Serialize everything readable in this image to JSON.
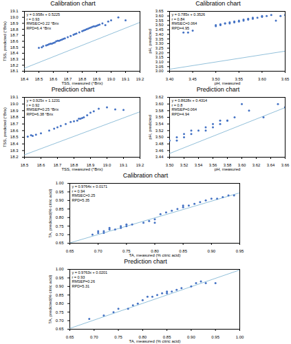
{
  "chart_data": [
    {
      "type": "scatter",
      "title": "Calibration chart",
      "xlabel": "TSS, measured (°Brix)",
      "ylabel": "TSS, predicted (°Brix)",
      "annotation": "y = 0.958x + 0.5225\nr = 0.93\nRMSEC=0.22 °Brix\nRPD=6.4 °Brix",
      "xlim": [
        18.4,
        19.2
      ],
      "ylim": [
        18.1,
        19.1
      ],
      "xticks": [
        18.4,
        18.5,
        18.6,
        18.7,
        18.8,
        18.9,
        {
          "value": 19.0,
          "label": "19.0"
        },
        19.1,
        19.2
      ],
      "yticks": [
        18.1,
        18.2,
        18.3,
        18.4,
        18.5,
        18.6,
        18.7,
        18.8,
        18.9,
        {
          "value": 19.0,
          "label": "19.0"
        },
        19.1
      ],
      "grid": false,
      "series": [
        {
          "type": "scatter",
          "color": "#4472c4",
          "x": [
            18.5,
            18.52,
            18.53,
            18.55,
            18.56,
            18.57,
            18.58,
            18.59,
            18.6,
            18.61,
            18.62,
            18.63,
            18.64,
            18.65,
            18.66,
            18.67,
            18.68,
            18.7,
            18.72,
            18.74,
            18.75,
            18.76,
            18.78,
            18.8,
            18.81,
            18.82,
            18.83,
            18.84,
            18.85,
            18.86,
            18.87,
            18.88,
            18.89,
            18.9,
            18.91,
            18.92,
            18.94,
            18.96,
            18.98,
            19.0,
            19.05,
            19.1
          ],
          "values": [
            18.49,
            18.5,
            18.52,
            18.53,
            18.54,
            18.55,
            18.56,
            18.56,
            18.57,
            18.58,
            18.6,
            18.61,
            18.61,
            18.62,
            18.63,
            18.64,
            18.65,
            18.67,
            18.69,
            18.71,
            18.72,
            18.73,
            18.75,
            18.77,
            18.78,
            18.79,
            18.8,
            18.81,
            18.82,
            18.83,
            18.84,
            18.85,
            18.85,
            18.86,
            18.87,
            18.88,
            18.9,
            18.87,
            18.93,
            18.95,
            19.0,
            18.95
          ]
        },
        {
          "type": "line",
          "color": "#92c0da",
          "x": [
            18.4,
            19.2
          ],
          "values": [
            18.1497,
            18.9161
          ]
        }
      ]
    },
    {
      "type": "scatter",
      "title": "Calibration chart",
      "xlabel": "pH, measured",
      "ylabel": "pH, predicted",
      "annotation": "y = 0.785x + 0.3526\nr = 0.84\nRMSEC=0.064\nRPD=4.95",
      "xlim": [
        3.4,
        3.65
      ],
      "ylim": [
        3.0,
        3.65
      ],
      "xticks": [
        {
          "value": 3.4,
          "label": "3.40"
        },
        3.45,
        {
          "value": 3.5,
          "label": "3.50"
        },
        3.55,
        {
          "value": 3.6,
          "label": "3.60"
        },
        3.65
      ],
      "yticks": [
        {
          "value": 3.0,
          "label": "3.00"
        },
        3.05,
        {
          "value": 3.1,
          "label": "3.10"
        },
        3.15,
        {
          "value": 3.2,
          "label": "3.20"
        },
        3.25,
        {
          "value": 3.3,
          "label": "3.30"
        },
        3.35,
        {
          "value": 3.4,
          "label": "3.40"
        },
        3.45,
        {
          "value": 3.5,
          "label": "3.50"
        },
        3.55,
        {
          "value": 3.6,
          "label": "3.60"
        },
        3.65
      ],
      "grid": false,
      "series": [
        {
          "type": "scatter",
          "color": "#4472c4",
          "x": [
            3.43,
            3.44,
            3.45,
            3.5,
            3.5,
            3.51,
            3.51,
            3.52,
            3.52,
            3.53,
            3.53,
            3.54,
            3.54,
            3.55,
            3.55,
            3.56,
            3.56,
            3.57,
            3.57,
            3.58,
            3.58,
            3.59,
            3.6,
            3.6,
            3.61,
            3.62,
            3.63,
            3.64,
            3.65
          ],
          "values": [
            3.42,
            3.42,
            3.44,
            3.49,
            3.5,
            3.5,
            3.51,
            3.52,
            3.52,
            3.52,
            3.53,
            3.53,
            3.54,
            3.54,
            3.55,
            3.55,
            3.56,
            3.56,
            3.57,
            3.57,
            3.58,
            3.58,
            3.59,
            3.6,
            3.6,
            3.61,
            3.55,
            3.6,
            3.61
          ]
        },
        {
          "type": "line",
          "color": "#92c0da",
          "x": [
            3.4,
            3.65
          ],
          "values": [
            3.0216,
            3.21785
          ]
        }
      ]
    },
    {
      "type": "scatter",
      "title": "Prediction chart",
      "xlabel": "TSS, measured (°Brix)",
      "ylabel": "TSS, predicted (°Brix)",
      "annotation": "y = 0.925x + 1.1231\nr = 0.92\nRMSEP=0.25 °Brix\nRPD=6.38 °Brix",
      "xlim": [
        18.5,
        19.2
      ],
      "ylim": [
        18.2,
        19.1
      ],
      "xticks": [
        18.5,
        18.6,
        18.7,
        18.8,
        18.9,
        {
          "value": 19.0,
          "label": "19.0"
        },
        19.1,
        19.2
      ],
      "yticks": [
        18.2,
        18.3,
        18.4,
        18.5,
        18.6,
        18.7,
        18.8,
        18.9,
        {
          "value": 19.0,
          "label": "19.0"
        },
        19.1
      ],
      "grid": false,
      "series": [
        {
          "type": "scatter",
          "color": "#4472c4",
          "x": [
            18.52,
            18.54,
            18.55,
            18.57,
            18.6,
            18.65,
            18.68,
            18.7,
            18.72,
            18.75,
            18.78,
            18.8,
            18.82,
            18.83,
            18.84,
            18.85,
            18.86,
            18.88,
            18.9,
            18.92,
            18.95,
            19.0,
            19.05,
            19.1
          ],
          "values": [
            18.51,
            18.53,
            18.52,
            18.54,
            18.56,
            18.6,
            18.63,
            18.65,
            18.67,
            18.7,
            18.73,
            18.74,
            18.75,
            18.78,
            18.78,
            18.79,
            18.8,
            18.83,
            18.87,
            18.89,
            18.93,
            18.95,
            18.92,
            18.91
          ]
        },
        {
          "type": "line",
          "color": "#92c0da",
          "x": [
            18.5,
            19.2
          ],
          "values": [
            18.2356,
            18.8831
          ]
        }
      ]
    },
    {
      "type": "scatter",
      "title": "Prediction chart",
      "xlabel": "pH, measured",
      "ylabel": "pH, predicted",
      "annotation": "y = 0.8628x + 0.4314\nr = 0.8\nRMSEP=0.064\nRPD=4.94",
      "xlim": [
        3.5,
        3.66
      ],
      "ylim": [
        3.44,
        3.62
      ],
      "xticks": [
        {
          "value": 3.5,
          "label": "3.50"
        },
        3.52,
        3.54,
        3.56,
        3.58,
        {
          "value": 3.6,
          "label": "3.60"
        },
        3.62,
        3.64,
        3.66
      ],
      "yticks": [
        3.44,
        3.46,
        3.48,
        {
          "value": 3.5,
          "label": "3.50"
        },
        3.52,
        3.54,
        3.56,
        3.58,
        {
          "value": 3.6,
          "label": "3.60"
        },
        3.62
      ],
      "grid": false,
      "series": [
        {
          "type": "scatter",
          "color": "#4472c4",
          "x": [
            3.5,
            3.51,
            3.51,
            3.52,
            3.52,
            3.53,
            3.53,
            3.54,
            3.55,
            3.55,
            3.56,
            3.56,
            3.57,
            3.57,
            3.58,
            3.58,
            3.59,
            3.6,
            3.61,
            3.63,
            3.65,
            3.66
          ],
          "values": [
            3.49,
            3.49,
            3.5,
            3.5,
            3.51,
            3.51,
            3.52,
            3.52,
            3.52,
            3.53,
            3.53,
            3.54,
            3.54,
            3.55,
            3.55,
            3.55,
            3.56,
            3.6,
            3.58,
            3.56,
            3.6,
            3.59
          ]
        },
        {
          "type": "line",
          "color": "#92c0da",
          "x": [
            3.5,
            3.66
          ],
          "values": [
            3.4512,
            3.589248
          ]
        }
      ]
    },
    {
      "type": "scatter",
      "title": "Calibration chart",
      "xlabel": "TA, measured (% citric acid)",
      "ylabel": "TA, predicted(% citric acid)",
      "annotation": "y = 0.9764x + 0.0171\nr = 0.94\nRMSEC=0.25\nRPD=5.35",
      "xlim": [
        0.65,
        0.95
      ],
      "ylim": [
        0.65,
        1.0
      ],
      "xticks": [
        0.65,
        {
          "value": 0.7,
          "label": "0.70"
        },
        0.75,
        {
          "value": 0.8,
          "label": "0.80"
        },
        0.85,
        {
          "value": 0.9,
          "label": "0.90"
        },
        0.95
      ],
      "yticks": [
        0.65,
        {
          "value": 0.7,
          "label": "0.70"
        },
        0.75,
        {
          "value": 0.8,
          "label": "0.80"
        },
        0.85,
        {
          "value": 0.9,
          "label": "0.90"
        },
        0.95,
        {
          "value": 1.0,
          "label": "1.00"
        }
      ],
      "grid": false,
      "series": [
        {
          "type": "scatter",
          "color": "#4472c4",
          "x": [
            0.69,
            0.7,
            0.7,
            0.71,
            0.71,
            0.72,
            0.72,
            0.73,
            0.74,
            0.74,
            0.75,
            0.75,
            0.76,
            0.78,
            0.79,
            0.8,
            0.8,
            0.81,
            0.82,
            0.83,
            0.84,
            0.85,
            0.85,
            0.86,
            0.87,
            0.88,
            0.89,
            0.9,
            0.91,
            0.92,
            0.93,
            0.94
          ],
          "values": [
            0.7,
            0.71,
            0.72,
            0.71,
            0.72,
            0.73,
            0.74,
            0.73,
            0.74,
            0.75,
            0.75,
            0.76,
            0.76,
            0.77,
            0.78,
            0.77,
            0.79,
            0.82,
            0.83,
            0.84,
            0.85,
            0.86,
            0.87,
            0.87,
            0.88,
            0.89,
            0.9,
            0.91,
            0.91,
            0.92,
            0.93,
            0.93
          ]
        },
        {
          "type": "line",
          "color": "#92c0da",
          "x": [
            0.65,
            0.95
          ],
          "values": [
            0.65176,
            0.94468
          ]
        }
      ]
    },
    {
      "type": "scatter",
      "title": "Prediction chart",
      "xlabel": "TA, measured (% citric acid)",
      "ylabel": "TA, predicted(% citric acid)",
      "annotation": "y = 0.9763x + 0.0201\nr = 0.93\nRMSEP=0.26\nRPD=5.31",
      "xlim": [
        0.65,
        1.0
      ],
      "ylim": [
        0.65,
        1.0
      ],
      "xticks": [
        0.65,
        {
          "value": 0.7,
          "label": "0.70"
        },
        0.75,
        {
          "value": 0.8,
          "label": "0.80"
        },
        0.85,
        {
          "value": 0.9,
          "label": "0.90"
        },
        0.95,
        {
          "value": 1.0,
          "label": "1.00"
        }
      ],
      "yticks": [
        0.65,
        {
          "value": 0.7,
          "label": "0.70"
        },
        0.75,
        {
          "value": 0.8,
          "label": "0.80"
        },
        0.85,
        {
          "value": 0.9,
          "label": "0.90"
        },
        0.95,
        {
          "value": 1.0,
          "label": "1.00"
        }
      ],
      "grid": false,
      "series": [
        {
          "type": "scatter",
          "color": "#4472c4",
          "x": [
            0.69,
            0.72,
            0.74,
            0.75,
            0.77,
            0.78,
            0.79,
            0.8,
            0.81,
            0.82,
            0.83,
            0.84,
            0.85,
            0.85,
            0.86,
            0.87,
            0.88,
            0.9,
            0.91,
            0.92,
            0.93,
            0.95
          ],
          "values": [
            0.71,
            0.73,
            0.75,
            0.77,
            0.77,
            0.79,
            0.8,
            0.82,
            0.84,
            0.84,
            0.85,
            0.86,
            0.86,
            0.87,
            0.87,
            0.88,
            0.89,
            0.9,
            0.92,
            0.93,
            0.92,
            0.92
          ]
        },
        {
          "type": "line",
          "color": "#92c0da",
          "x": [
            0.65,
            1.0
          ],
          "values": [
            0.654695,
            0.9964
          ]
        }
      ]
    }
  ]
}
